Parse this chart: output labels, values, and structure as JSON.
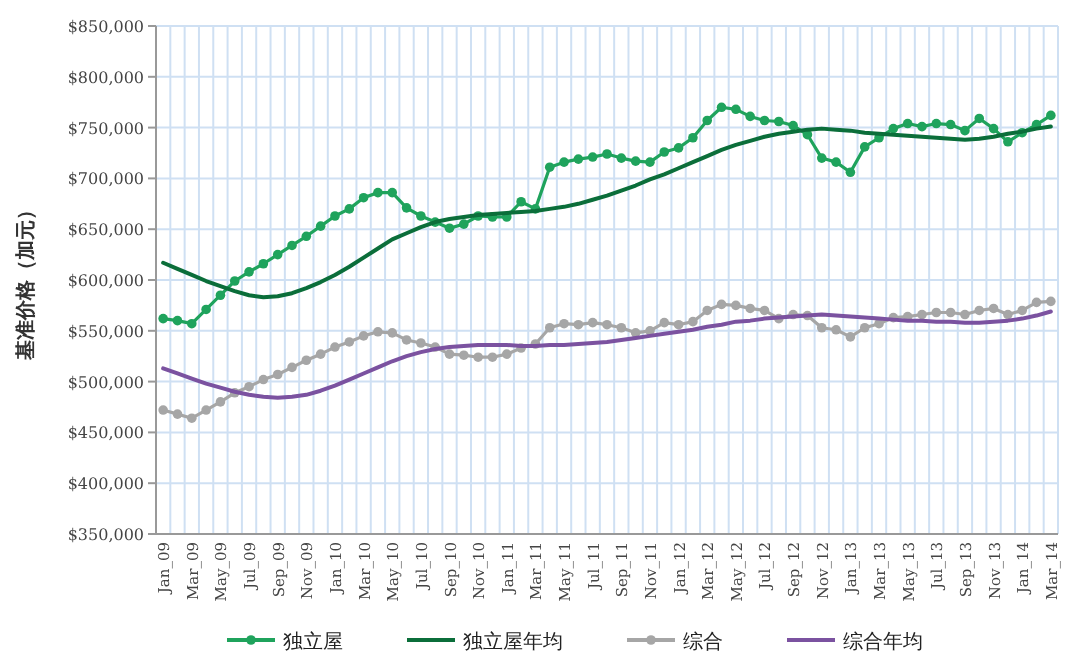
{
  "chart_data": {
    "type": "line",
    "ylabel": "基准价格（加元）",
    "legend": "bottom",
    "grid": true,
    "categories": [
      "Jan_09",
      null,
      "Mar_09",
      null,
      "May_09",
      null,
      "Jul_09",
      null,
      "Sep_09",
      null,
      "Nov_09",
      null,
      "Jan_10",
      null,
      "Mar_10",
      null,
      "May_10",
      null,
      "Jul_10",
      null,
      "Sep_10",
      null,
      "Nov_10",
      null,
      "Jan_11",
      null,
      "Mar_11",
      null,
      "May_11",
      null,
      "Jul_11",
      null,
      "Sep_11",
      null,
      "Nov_11",
      null,
      "Jan_12",
      null,
      "Mar_12",
      null,
      "May_12",
      null,
      "Jul_12",
      null,
      "Sep_12",
      null,
      "Nov_12",
      null,
      "Jan_13",
      null,
      "Mar_13",
      null,
      "May_13",
      null,
      "Jul_13",
      null,
      "Sep_13",
      null,
      "Nov_13",
      null,
      "Jan_14",
      null,
      "Mar_14"
    ],
    "ylim": [
      350000,
      850000
    ],
    "yticks": [
      {
        "value": 350000,
        "label": "$350,000"
      },
      {
        "value": 400000,
        "label": "$400,000"
      },
      {
        "value": 450000,
        "label": "$450,000"
      },
      {
        "value": 500000,
        "label": "$500,000"
      },
      {
        "value": 550000,
        "label": "$550,000"
      },
      {
        "value": 600000,
        "label": "$600,000"
      },
      {
        "value": 650000,
        "label": "$650,000"
      },
      {
        "value": 700000,
        "label": "$700,000"
      },
      {
        "value": 750000,
        "label": "$750,000"
      },
      {
        "value": 800000,
        "label": "$800,000"
      },
      {
        "value": 850000,
        "label": "$850,000"
      }
    ],
    "series": [
      {
        "name": "独立屋",
        "color": "#1fa35c",
        "marker": "circle",
        "values": [
          562000,
          560000,
          557000,
          571000,
          585000,
          599000,
          608000,
          616000,
          625000,
          634000,
          643000,
          653000,
          663000,
          670000,
          681000,
          686000,
          686000,
          671000,
          663000,
          657000,
          651000,
          655000,
          663000,
          662000,
          662000,
          677000,
          670000,
          711000,
          716000,
          719000,
          721000,
          724000,
          720000,
          717000,
          716000,
          726000,
          730000,
          740000,
          757000,
          770000,
          768000,
          761000,
          757000,
          756000,
          752000,
          743000,
          720000,
          716000,
          706000,
          731000,
          740000,
          749000,
          754000,
          751000,
          754000,
          753000,
          747000,
          759000,
          749000,
          736000,
          745000,
          753000,
          762000
        ]
      },
      {
        "name": "独立屋年均",
        "color": "#0b6e3a",
        "marker": "none",
        "values": [
          617000,
          611000,
          605000,
          599000,
          594000,
          589000,
          585000,
          583000,
          584000,
          587000,
          592000,
          598000,
          605000,
          613000,
          622000,
          631000,
          640000,
          646000,
          652000,
          657000,
          660000,
          662000,
          664000,
          665000,
          666000,
          667000,
          668000,
          670000,
          672000,
          675000,
          679000,
          683000,
          688000,
          693000,
          699000,
          704000,
          710000,
          716000,
          722000,
          728000,
          733000,
          737000,
          741000,
          744000,
          746000,
          748000,
          749000,
          748000,
          747000,
          745000,
          744000,
          743000,
          742000,
          741000,
          740000,
          739000,
          738000,
          739000,
          741000,
          744000,
          746000,
          749000,
          751000
        ]
      },
      {
        "name": "综合",
        "color": "#a6a6a6",
        "marker": "circle",
        "values": [
          472000,
          468000,
          464000,
          472000,
          480000,
          489000,
          495000,
          502000,
          507000,
          514000,
          521000,
          527000,
          534000,
          539000,
          545000,
          549000,
          548000,
          541000,
          538000,
          534000,
          527000,
          526000,
          524000,
          524000,
          527000,
          533000,
          537000,
          553000,
          557000,
          556000,
          558000,
          556000,
          553000,
          548000,
          550000,
          558000,
          556000,
          559000,
          570000,
          576000,
          575000,
          572000,
          570000,
          562000,
          566000,
          565000,
          553000,
          551000,
          544000,
          553000,
          557000,
          563000,
          564000,
          566000,
          568000,
          568000,
          566000,
          570000,
          572000,
          566000,
          570000,
          578000,
          579000
        ]
      },
      {
        "name": "综合年均",
        "color": "#7b52a0",
        "marker": "none",
        "values": [
          513000,
          508000,
          503000,
          498000,
          494000,
          490000,
          487000,
          485000,
          484000,
          485000,
          487000,
          491000,
          496000,
          502000,
          508000,
          514000,
          520000,
          525000,
          529000,
          532000,
          534000,
          535000,
          536000,
          536000,
          536000,
          535000,
          535000,
          536000,
          536000,
          537000,
          538000,
          539000,
          541000,
          543000,
          545000,
          547000,
          549000,
          551000,
          554000,
          556000,
          559000,
          560000,
          562000,
          563000,
          564000,
          565000,
          566000,
          565000,
          564000,
          563000,
          562000,
          561000,
          560000,
          560000,
          559000,
          559000,
          558000,
          558000,
          559000,
          560000,
          562000,
          565000,
          569000
        ]
      }
    ]
  }
}
